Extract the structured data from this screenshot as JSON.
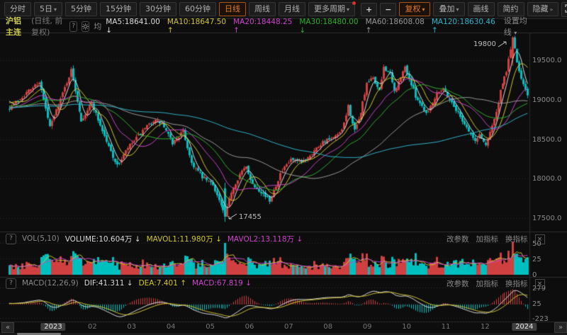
{
  "toolbar": {
    "periods": [
      {
        "label": "分时",
        "dropdown": false,
        "selected": false
      },
      {
        "label": "5日",
        "dropdown": true,
        "selected": false
      },
      {
        "label": "5分钟",
        "dropdown": false,
        "selected": false
      },
      {
        "label": "15分钟",
        "dropdown": false,
        "selected": false
      },
      {
        "label": "30分钟",
        "dropdown": false,
        "selected": false
      },
      {
        "label": "60分钟",
        "dropdown": false,
        "selected": false
      },
      {
        "label": "日线",
        "dropdown": false,
        "selected": true
      },
      {
        "label": "周线",
        "dropdown": false,
        "selected": false
      },
      {
        "label": "月线",
        "dropdown": false,
        "selected": false
      },
      {
        "label": "更多周期",
        "dropdown": true,
        "selected": false,
        "badge": true
      }
    ],
    "zoom_in": "+",
    "zoom_out": "−",
    "actions": [
      {
        "label": "复权",
        "dropdown": true,
        "selected": true
      },
      {
        "label": "叠加",
        "dropdown": true,
        "selected": false
      },
      {
        "label": "画线",
        "dropdown": false,
        "selected": false
      },
      {
        "label": "简约",
        "dropdown": false,
        "selected": false
      },
      {
        "label": "隐藏",
        "dropdown": false,
        "selected": false,
        "suffix": "»"
      }
    ]
  },
  "header": {
    "symbol": "沪铝主连",
    "subtitle": "(日线, 前复权)",
    "help_icon": "?",
    "ma_prefix": "均",
    "ma_values": [
      {
        "label": "MA5:18641.00",
        "dir": "down",
        "color": "#dedede"
      },
      {
        "label": "MA10:18647.50",
        "dir": "up",
        "color": "#d3c52c"
      },
      {
        "label": "MA20:18448.25",
        "dir": "up",
        "color": "#cc44cc"
      },
      {
        "label": "MA30:18480.00",
        "dir": "down",
        "color": "#2faf2f"
      },
      {
        "label": "MA60:18608.08",
        "dir": "up",
        "color": "#9a9a9a"
      },
      {
        "label": "MA120:18630.46",
        "dir": "up",
        "color": "#2fb4cf"
      }
    ],
    "set_ma": "设置均线"
  },
  "main_chart": {
    "y_ticks": [
      "19500.0",
      "19000.0",
      "18500.0",
      "18000.0",
      "17500.0"
    ],
    "high_annotation": "19800",
    "low_annotation": "17455"
  },
  "volume_pane": {
    "help_icon": "?",
    "indicator": "VOL(5,10)",
    "volume": "VOLUME:10.604万",
    "volume_dir": "down",
    "mavol1": "MAVOL1:11.980万",
    "mavol1_dir": "down",
    "mavol2": "MAVOL2:13.118万",
    "mavol2_dir": "down",
    "links": [
      "改参数",
      "加指标",
      "换指标"
    ],
    "close": "×",
    "y_ticks": [
      "50",
      "25",
      "0"
    ]
  },
  "macd_pane": {
    "help_icon": "?",
    "indicator": "MACD(12,26,9)",
    "dif": "DIF:41.311",
    "dif_dir": "down",
    "dea": "DEA:7.401",
    "dea_dir": "up",
    "macd": "MACD:67.819",
    "macd_dir": "down",
    "links": [
      "改参数",
      "加指标",
      "换指标"
    ],
    "close": "×",
    "y_ticks": [
      "279",
      "25",
      "-223"
    ]
  },
  "time_axis": {
    "labels": [
      "2023",
      "02",
      "03",
      "04",
      "05",
      "06",
      "07",
      "08",
      "09",
      "10",
      "11",
      "12",
      "2024"
    ],
    "year_indices": [
      0,
      12
    ],
    "prev": "«",
    "next": "»"
  },
  "colors": {
    "up": "#d04040",
    "down": "#00bfbf",
    "accent": "#e07a2e",
    "ma5": "#dedede",
    "ma10": "#d3c52c",
    "ma20": "#cc44cc",
    "ma30": "#2faf2f",
    "ma60": "#9a9a9a",
    "ma120": "#2fb4cf",
    "vol_ma1": "#d3c52c",
    "vol_ma2": "#cc44cc",
    "dif": "#dedede",
    "dea": "#d3c52c",
    "grid": "#2a2a2a",
    "frame": "#2c2c2c",
    "axis_text": "#8a8a8a"
  },
  "chart_data": {
    "type": "candlestick",
    "title": "沪铝主连 日线",
    "days": 246,
    "price_axis": {
      "ticks": [
        19500,
        19000,
        18500,
        18000,
        17500
      ],
      "min": 17350,
      "max": 19830
    },
    "price_anchors": [
      [
        0,
        18900
      ],
      [
        14,
        19230
      ],
      [
        19,
        18650
      ],
      [
        29,
        19370
      ],
      [
        34,
        18740
      ],
      [
        39,
        18960
      ],
      [
        46,
        18470
      ],
      [
        51,
        18160
      ],
      [
        56,
        18390
      ],
      [
        63,
        18600
      ],
      [
        68,
        18740
      ],
      [
        72,
        18700
      ],
      [
        77,
        18450
      ],
      [
        82,
        18600
      ],
      [
        86,
        18200
      ],
      [
        91,
        18020
      ],
      [
        96,
        17930
      ],
      [
        100,
        17660
      ],
      [
        102,
        17520
      ],
      [
        105,
        17840
      ],
      [
        109,
        18060
      ],
      [
        112,
        18150
      ],
      [
        115,
        17930
      ],
      [
        119,
        17840
      ],
      [
        123,
        17720
      ],
      [
        128,
        18060
      ],
      [
        133,
        18240
      ],
      [
        138,
        18200
      ],
      [
        143,
        18330
      ],
      [
        148,
        18470
      ],
      [
        153,
        18510
      ],
      [
        157,
        18600
      ],
      [
        160,
        18920
      ],
      [
        163,
        18600
      ],
      [
        165,
        18740
      ],
      [
        169,
        19190
      ],
      [
        172,
        19280
      ],
      [
        175,
        19100
      ],
      [
        177,
        19415
      ],
      [
        180,
        19325
      ],
      [
        182,
        19100
      ],
      [
        185,
        19280
      ],
      [
        187,
        19415
      ],
      [
        190,
        19190
      ],
      [
        192,
        19050
      ],
      [
        195,
        18920
      ],
      [
        197,
        18830
      ],
      [
        200,
        18960
      ],
      [
        202,
        19100
      ],
      [
        205,
        19145
      ],
      [
        207,
        19050
      ],
      [
        210,
        18920
      ],
      [
        212,
        18830
      ],
      [
        215,
        18700
      ],
      [
        217,
        18605
      ],
      [
        220,
        18470
      ],
      [
        222,
        18560
      ],
      [
        225,
        18425
      ],
      [
        227,
        18605
      ],
      [
        230,
        18830
      ],
      [
        232,
        19100
      ],
      [
        235,
        19370
      ],
      [
        237,
        19640
      ],
      [
        238,
        19800
      ],
      [
        240,
        19460
      ],
      [
        242,
        19280
      ],
      [
        244,
        19145
      ],
      [
        245,
        19050
      ]
    ],
    "low_point": {
      "day": 102,
      "price": 17455
    },
    "high_point": {
      "day": 238,
      "price": 19800
    },
    "volume_axis": {
      "ticks": [
        50,
        25,
        0
      ]
    },
    "volume_spikes": [
      [
        102,
        50
      ],
      [
        160,
        26
      ],
      [
        169,
        33
      ],
      [
        177,
        28
      ]
    ],
    "ma_periods": [
      5,
      10,
      20,
      30,
      60,
      120
    ],
    "macd_params": [
      12,
      26,
      9
    ],
    "macd_axis": {
      "ticks": [
        279,
        25,
        -223
      ]
    }
  }
}
